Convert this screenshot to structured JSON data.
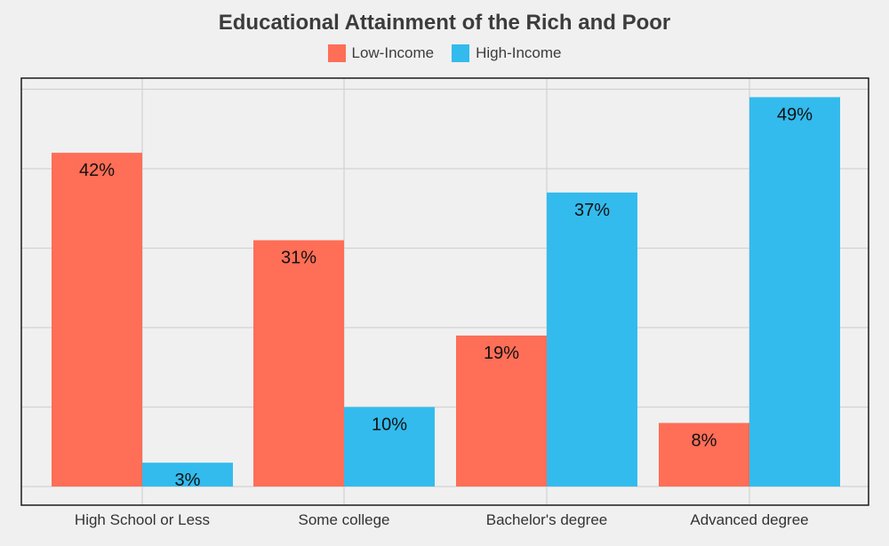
{
  "chart_data": {
    "type": "bar",
    "title": "Educational Attainment of the Rich and Poor",
    "xlabel": "",
    "ylabel": "",
    "categories": [
      "High School or Less",
      "Some college",
      "Bachelor's degree",
      "Advanced degree"
    ],
    "series": [
      {
        "name": "Low-Income",
        "values": [
          42,
          31,
          19,
          8
        ],
        "labels": [
          "42%",
          "31%",
          "19%",
          "8%"
        ],
        "color": "#ff6e57"
      },
      {
        "name": "High-Income",
        "values": [
          3,
          10,
          37,
          49
        ],
        "labels": [
          "3%",
          "10%",
          "37%",
          "49%"
        ],
        "color": "#33bbed"
      }
    ],
    "ylim": [
      0,
      52.5
    ],
    "grid": true,
    "legend_position": "top",
    "y_tick_labels_shown": false
  }
}
